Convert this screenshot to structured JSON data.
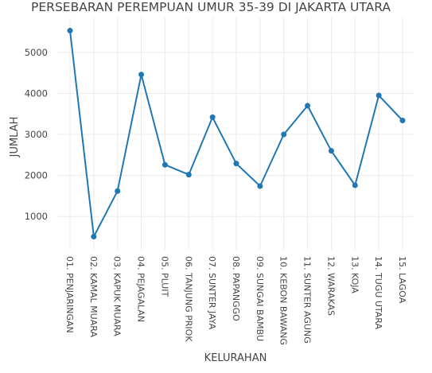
{
  "chart_data": {
    "type": "line",
    "title": "PERSEBARAN PEREMPUAN UMUR 35-39 DI JAKARTA UTARA",
    "xlabel": "KELURAHAN",
    "ylabel": "JUMLAH",
    "categories": [
      "01. PENJARINGAN",
      "02. KAMAL MUARA",
      "03. KAPUK MUARA",
      "04. PEJAGALAN",
      "05. PLUIT",
      "06. TANJUNG PRIOK",
      "07. SUNTER JAYA",
      "08. PAPANGGO",
      "09. SUNGAI BAMBU",
      "10. KEBON BAWANG",
      "11. SUNTER AGUNG",
      "12. WARAKAS",
      "13. KOJA",
      "14. TUGU UTARA",
      "15. LAGOA"
    ],
    "values": [
      5530,
      510,
      1620,
      4460,
      2260,
      2020,
      3420,
      2290,
      1740,
      3000,
      3700,
      2600,
      1760,
      3950,
      3340
    ],
    "yticks": [
      1000,
      2000,
      3000,
      4000,
      5000
    ],
    "ylim": [
      190,
      5850
    ],
    "grid": true,
    "line_color": "#1f77b4"
  }
}
